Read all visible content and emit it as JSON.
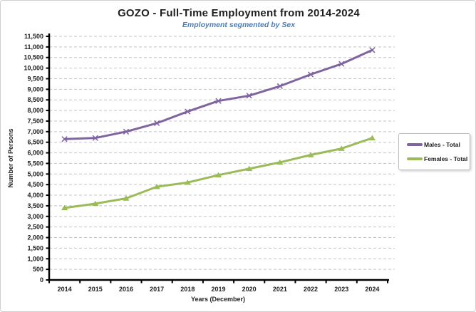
{
  "chart_data": {
    "type": "line",
    "title": "GOZO - Full-Time Employment from 2014-2024",
    "subtitle": "Employment segmented by Sex",
    "xlabel": "Years (December)",
    "ylabel": "Number of Persons",
    "categories": [
      "2014",
      "2015",
      "2016",
      "2017",
      "2018",
      "2019",
      "2020",
      "2021",
      "2022",
      "2023",
      "2024"
    ],
    "series": [
      {
        "name": "Males - Total",
        "color": "#8064A2",
        "marker": "x",
        "values": [
          6650,
          6700,
          7000,
          7400,
          7950,
          8450,
          8700,
          9150,
          9700,
          10200,
          10850
        ]
      },
      {
        "name": "Females - Total",
        "color": "#9BBB59",
        "marker": "triangle",
        "values": [
          3400,
          3600,
          3850,
          4400,
          4600,
          4950,
          5250,
          5550,
          5900,
          6200,
          6700
        ]
      }
    ],
    "ylim": [
      0,
      11500
    ],
    "ytick_step": 500,
    "grid": "horizontal-dashed",
    "gridline_color": "#c3c3c3",
    "axis_color": "#000000",
    "tick_label_color": "#1f1f1f",
    "title_color": "#1f1f1f",
    "subtitle_color": "#4a7ebb",
    "legend_position": "right"
  }
}
